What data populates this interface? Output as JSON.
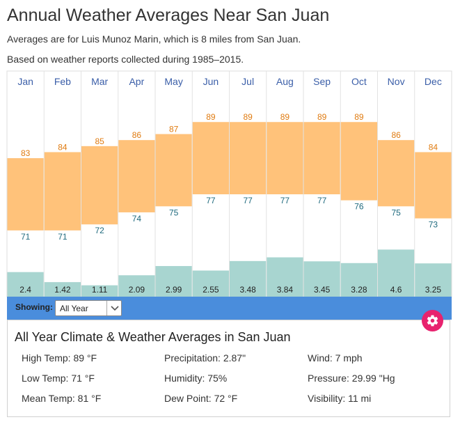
{
  "page": {
    "title": "Annual Weather Averages Near San Juan",
    "subtitle_1": "Averages are for Luis Munoz Marin, which is 8 miles from San Juan.",
    "subtitle_2": "Based on weather reports collected during 1985–2015."
  },
  "colors": {
    "temp_band": "#ffc27a",
    "precip_bar": "#a8d5d0",
    "month_text": "#3a5ea8",
    "high_text": "#e07b10",
    "low_text": "#1f6a7e",
    "showing_bar": "#4a8ddc",
    "gear_button": "#e8226e"
  },
  "chart_data": {
    "type": "bar",
    "title": "Annual Weather Averages Near San Juan",
    "categories": [
      "Jan",
      "Feb",
      "Mar",
      "Apr",
      "May",
      "Jun",
      "Jul",
      "Aug",
      "Sep",
      "Oct",
      "Nov",
      "Dec"
    ],
    "series": [
      {
        "name": "High Temp (°F)",
        "values": [
          83,
          84,
          85,
          86,
          87,
          89,
          89,
          89,
          89,
          89,
          86,
          84
        ]
      },
      {
        "name": "Low Temp (°F)",
        "values": [
          71,
          71,
          72,
          74,
          75,
          77,
          77,
          77,
          77,
          76,
          75,
          73
        ]
      },
      {
        "name": "Precipitation (in)",
        "values": [
          2.4,
          1.42,
          1.11,
          2.09,
          2.99,
          2.55,
          3.48,
          3.84,
          3.45,
          3.28,
          4.6,
          3.25
        ]
      }
    ],
    "precip_labels": [
      "2.4",
      "1.42",
      "1.11",
      "2.09",
      "2.99",
      "2.55",
      "3.48",
      "3.84",
      "3.45",
      "3.28",
      "4.6",
      "3.25"
    ],
    "temp_scale": [
      60,
      94
    ],
    "precip_scale": [
      0,
      20
    ],
    "grid": true,
    "legend": "none"
  },
  "controls": {
    "showing_label": "Showing:",
    "showing_value": "All Year"
  },
  "summary": {
    "title": "All Year Climate & Weather Averages in San Juan",
    "stats": [
      "High Temp: 89 °F",
      "Precipitation: 2.87\"",
      "Wind: 7 mph",
      "Low Temp: 71 °F",
      "Humidity: 75%",
      "Pressure: 29.99 \"Hg",
      "Mean Temp: 81 °F",
      "Dew Point: 72 °F",
      "Visibility: 11 mi"
    ]
  },
  "icons": {
    "settings": "gear-icon",
    "dropdown": "chevron-down-icon"
  }
}
